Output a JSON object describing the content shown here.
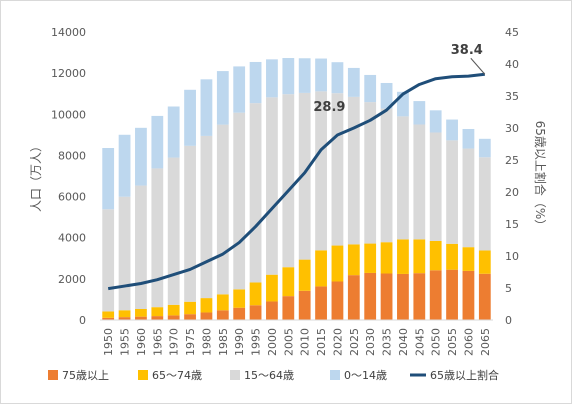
{
  "chart_data": {
    "type": "bar",
    "categories": [
      "1950",
      "1955",
      "1960",
      "1965",
      "1970",
      "1975",
      "1980",
      "1985",
      "1990",
      "1995",
      "2000",
      "2005",
      "2010",
      "2015",
      "2020",
      "2025",
      "2030",
      "2035",
      "2040",
      "2045",
      "2050",
      "2055",
      "2060",
      "2065"
    ],
    "series": [
      {
        "name": "75歳以上",
        "color": "#ed7d31",
        "values": [
          107,
          139,
          163,
          189,
          224,
          284,
          366,
          471,
          597,
          717,
          901,
          1160,
          1419,
          1632,
          1872,
          2180,
          2288,
          2260,
          2239,
          2277,
          2417,
          2446,
          2387,
          2248
        ]
      },
      {
        "name": "65〜74歳",
        "color": "#ffc000",
        "values": [
          309,
          336,
          372,
          435,
          515,
          603,
          699,
          776,
          892,
          1109,
          1301,
          1407,
          1517,
          1755,
          1747,
          1497,
          1428,
          1522,
          1681,
          1643,
          1424,
          1258,
          1154,
          1133
        ]
      },
      {
        "name": "15〜64歳",
        "color": "#d9d9d9",
        "values": [
          4966,
          5517,
          6000,
          6744,
          7157,
          7581,
          7883,
          8251,
          8590,
          8716,
          8622,
          8409,
          8103,
          7728,
          7406,
          7170,
          6875,
          6494,
          5978,
          5584,
          5275,
          5028,
          4793,
          4529
        ]
      },
      {
        "name": "0〜14歳",
        "color": "#bdd7ee",
        "values": [
          2979,
          3012,
          2807,
          2553,
          2482,
          2723,
          2751,
          2603,
          2249,
          2001,
          1847,
          1759,
          1684,
          1595,
          1507,
          1407,
          1321,
          1246,
          1194,
          1138,
          1077,
          1012,
          951,
          898
        ]
      }
    ],
    "line_series": {
      "name": "65歳以上割合",
      "color": "#1f4e79",
      "values": [
        4.9,
        5.3,
        5.7,
        6.3,
        7.1,
        7.9,
        9.1,
        10.3,
        12.1,
        14.6,
        17.4,
        20.2,
        23.0,
        26.6,
        28.9,
        30.0,
        31.2,
        32.8,
        35.3,
        36.8,
        37.7,
        38.0,
        38.1,
        38.4
      ]
    },
    "ylabel": "人口（万人）",
    "y2label": "65歳以上割合（%）",
    "ylim": [
      0,
      14000
    ],
    "y2lim": [
      0,
      45
    ],
    "yticks": [
      "0",
      "2000",
      "4000",
      "6000",
      "8000",
      "10000",
      "12000",
      "14000"
    ],
    "y2ticks": [
      "0",
      "5",
      "10",
      "15",
      "20",
      "25",
      "30",
      "35",
      "40",
      "45"
    ],
    "annotations": [
      {
        "text": "28.9",
        "index": 14
      },
      {
        "text": "38.4",
        "index": 23
      }
    ],
    "grid": false,
    "legend_position": "bottom"
  }
}
